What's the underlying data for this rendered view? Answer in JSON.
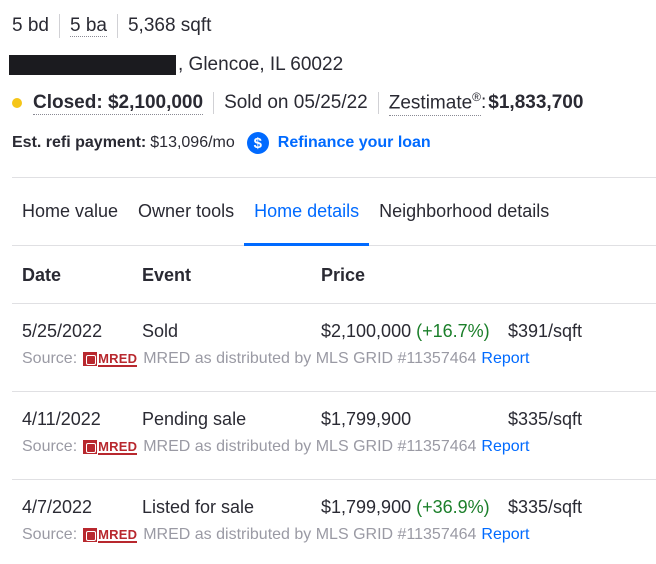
{
  "facts": {
    "beds": "5 bd",
    "baths": "5 ba",
    "sqft": "5,368 sqft"
  },
  "address": {
    "city_state_zip": ", Glencoe, IL 60022"
  },
  "status": {
    "closed_label": "Closed:",
    "closed_value": "$2,100,000",
    "sold_text": "Sold on 05/25/22",
    "zestimate_label": "Zestimate",
    "zestimate_mark": "®",
    "zestimate_colon": ":",
    "zestimate_value": "$1,833,700",
    "dot_color": "#f5c518"
  },
  "refi": {
    "label": "Est. refi payment:",
    "value": "$13,096/mo",
    "icon_glyph": "$",
    "link": "Refinance your loan"
  },
  "tabs": [
    {
      "label": "Home value",
      "active": false
    },
    {
      "label": "Owner tools",
      "active": false
    },
    {
      "label": "Home details",
      "active": true
    },
    {
      "label": "Neighborhood details",
      "active": false
    }
  ],
  "table": {
    "headers": {
      "date": "Date",
      "event": "Event",
      "price": "Price"
    },
    "source_label": "Source:",
    "source_logo_text": "MRED",
    "report_label": "Report",
    "rows": [
      {
        "date": "5/25/2022",
        "event": "Sold",
        "price": "$2,100,000",
        "change": "(+16.7%)",
        "per_sqft": "$391/sqft",
        "source_text": "MRED as distributed by MLS GRID #11357464"
      },
      {
        "date": "4/11/2022",
        "event": "Pending sale",
        "price": "$1,799,900",
        "change": "",
        "per_sqft": "$335/sqft",
        "source_text": "MRED as distributed by MLS GRID #11357464"
      },
      {
        "date": "4/7/2022",
        "event": "Listed for sale",
        "price": "$1,799,900",
        "change": "(+36.9%)",
        "per_sqft": "$335/sqft",
        "source_text": "MRED as distributed by MLS GRID #11357464"
      }
    ]
  },
  "colors": {
    "accent": "#006aff",
    "positive": "#1b7f2a",
    "mred_red": "#b8282e"
  }
}
